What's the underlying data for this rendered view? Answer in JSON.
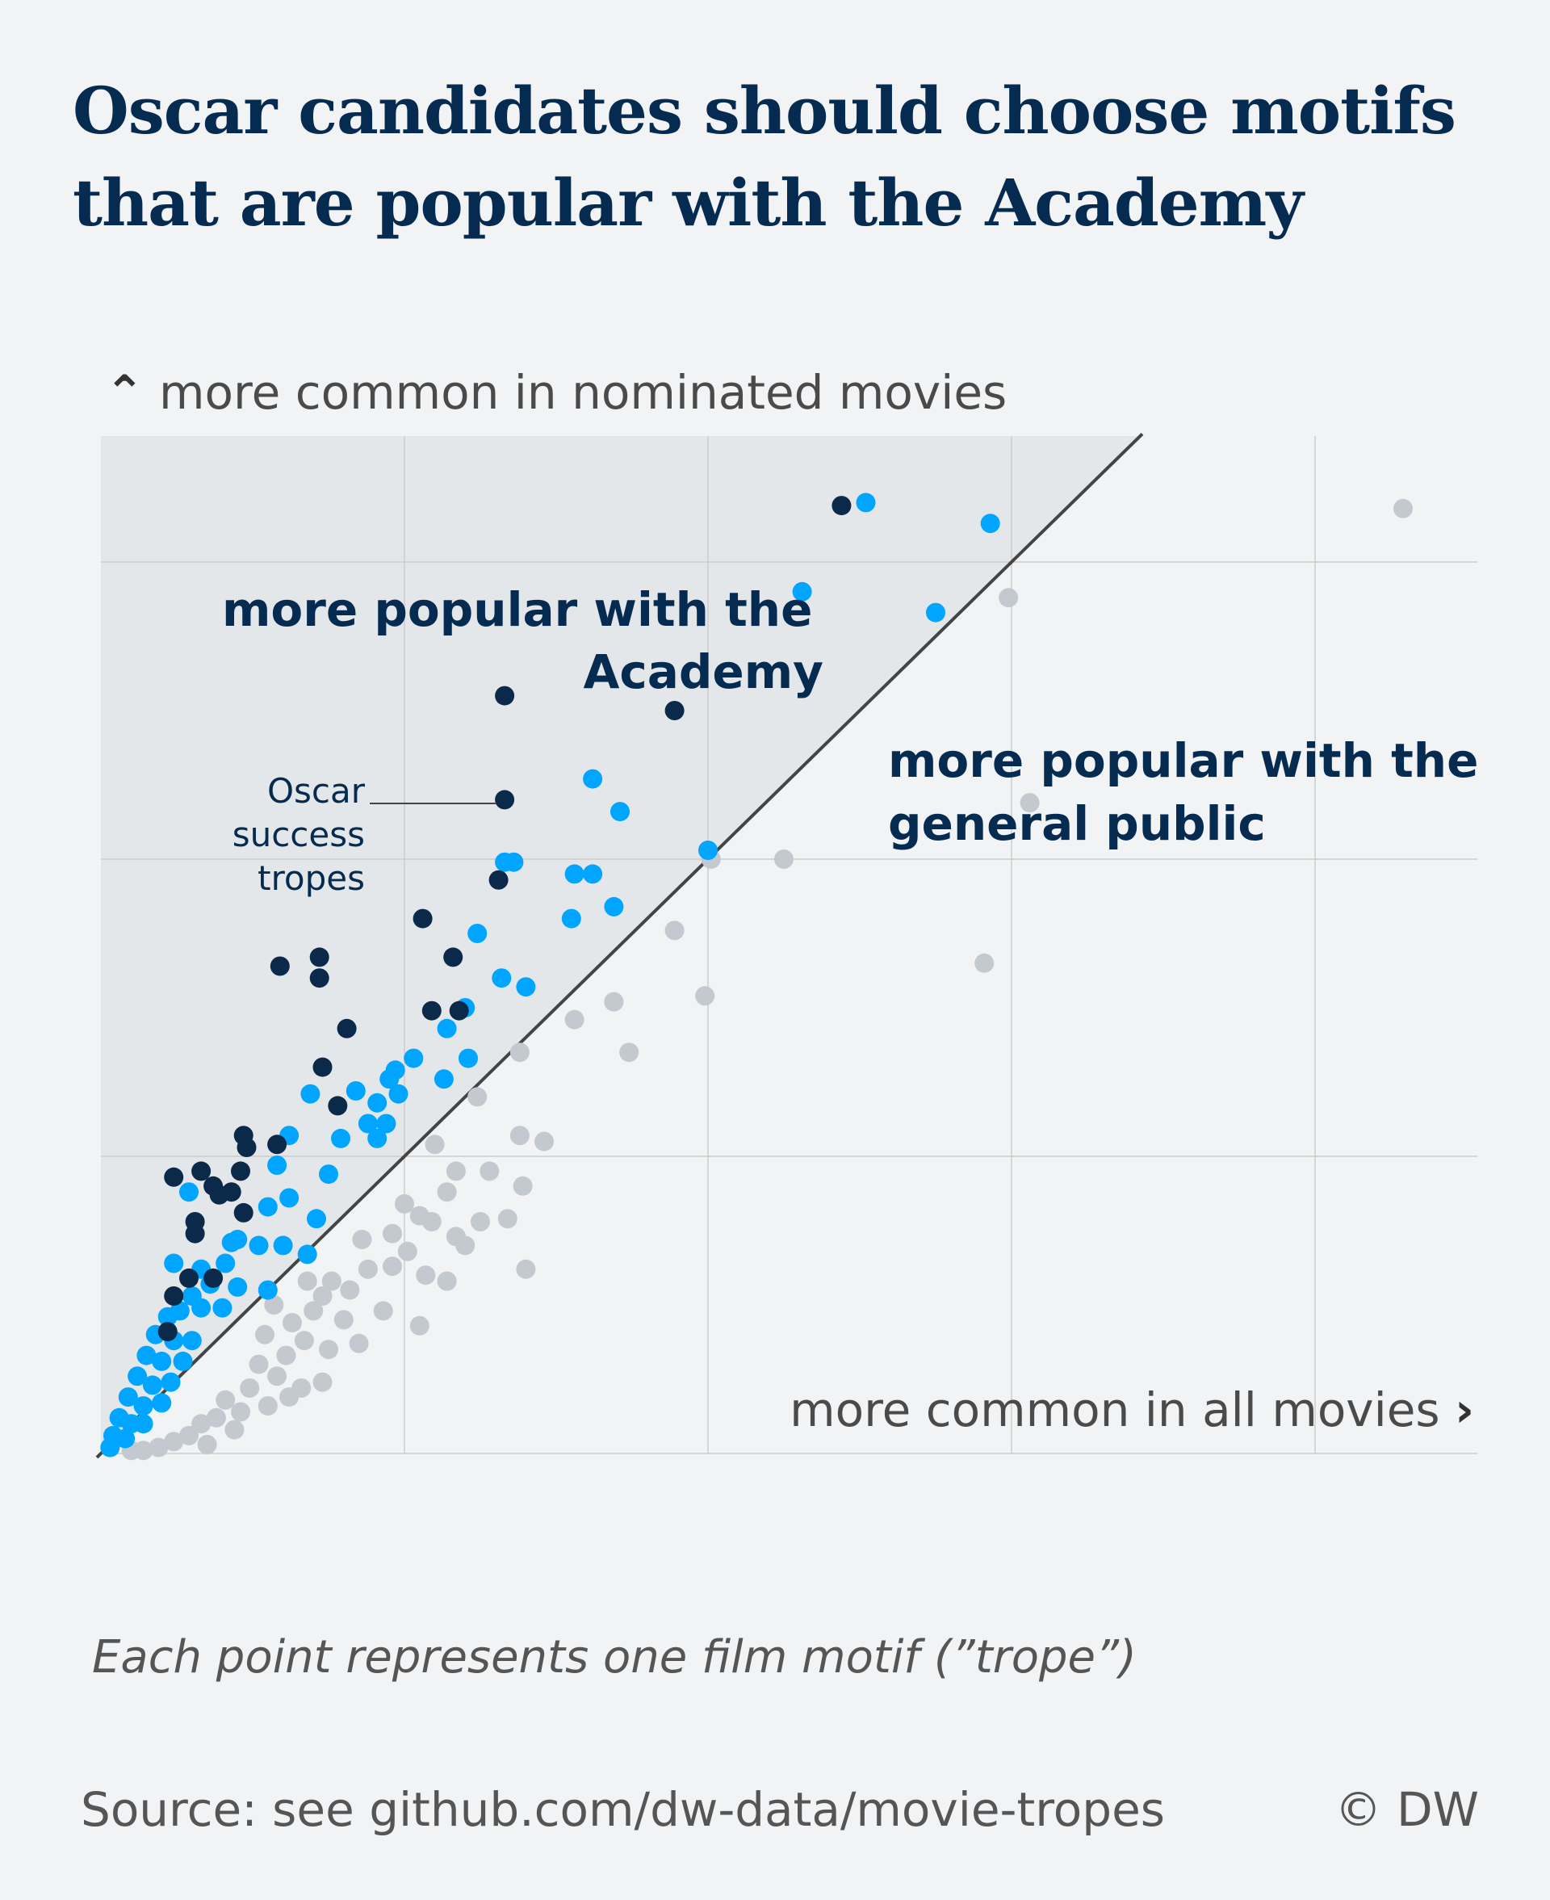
{
  "title": "Oscar candidates should choose motifs that are popular with the Academy",
  "y_axis_label": "more common in nominated movies",
  "x_axis_label": "more common in all movies",
  "annotation_academy": "more popular with the Academy",
  "annotation_public": "more popular with the general public",
  "annotation_success": "Oscar success tropes",
  "note": "Each point represents one film motif (”trope”)",
  "source": "Source: see github.com/dw-data/movie-tropes",
  "copyright": "© DW",
  "colors": {
    "background": "#f1f3f5",
    "region_above_diagonal": "#e4e7ea",
    "grid": "#cccccc",
    "diagonal": "#444444",
    "success_tropes": "#0b2a4a",
    "academy_tropes": "#00a5ff",
    "public_tropes": "#c3c9cf",
    "title": "#062b51"
  },
  "chart_data": {
    "type": "scatter",
    "title": "Oscar candidates should choose motifs that are popular with the Academy",
    "xlabel": "more common in all movies",
    "ylabel": "more common in nominated movies",
    "xlim": [
      0,
      4.5
    ],
    "ylim": [
      0,
      3.4
    ],
    "grid": true,
    "reference_line": "y = x",
    "series": [
      {
        "name": "Oscar success tropes",
        "color": "#0b2a4a",
        "points": [
          [
            2.44,
            3.19
          ],
          [
            1.89,
            2.5
          ],
          [
            1.33,
            2.55
          ],
          [
            1.33,
            2.2
          ],
          [
            1.31,
            1.93
          ],
          [
            1.06,
            1.8
          ],
          [
            1.16,
            1.67
          ],
          [
            1.18,
            1.49
          ],
          [
            1.09,
            1.49
          ],
          [
            0.72,
            1.67
          ],
          [
            0.72,
            1.6
          ],
          [
            0.81,
            1.43
          ],
          [
            0.73,
            1.3
          ],
          [
            0.78,
            1.17
          ],
          [
            0.47,
            1.07
          ],
          [
            0.58,
            1.04
          ],
          [
            0.46,
            0.95
          ],
          [
            0.24,
            0.93
          ],
          [
            0.33,
            0.95
          ],
          [
            0.39,
            0.87
          ],
          [
            0.43,
            0.88
          ],
          [
            0.47,
            0.81
          ],
          [
            0.37,
            0.9
          ],
          [
            0.31,
            0.78
          ],
          [
            0.31,
            0.74
          ],
          [
            0.37,
            0.59
          ],
          [
            0.29,
            0.59
          ],
          [
            0.24,
            0.53
          ],
          [
            0.22,
            0.41
          ],
          [
            0.59,
            1.64
          ],
          [
            0.48,
            1.03
          ]
        ]
      },
      {
        "name": "Academy tropes",
        "color": "#00a5ff",
        "points": [
          [
            2.52,
            3.2
          ],
          [
            2.93,
            3.13
          ],
          [
            2.31,
            2.9
          ],
          [
            2.75,
            2.83
          ],
          [
            1.62,
            2.27
          ],
          [
            1.71,
            2.16
          ],
          [
            2.0,
            2.03
          ],
          [
            1.33,
            1.99
          ],
          [
            1.36,
            1.99
          ],
          [
            1.56,
            1.95
          ],
          [
            1.62,
            1.95
          ],
          [
            1.69,
            1.84
          ],
          [
            1.55,
            1.8
          ],
          [
            1.24,
            1.75
          ],
          [
            1.32,
            1.6
          ],
          [
            1.4,
            1.57
          ],
          [
            1.14,
            1.43
          ],
          [
            1.2,
            1.5
          ],
          [
            1.21,
            1.33
          ],
          [
            1.03,
            1.33
          ],
          [
            0.84,
            1.22
          ],
          [
            0.97,
            1.29
          ],
          [
            1.13,
            1.26
          ],
          [
            0.98,
            1.21
          ],
          [
            0.95,
            1.26
          ],
          [
            0.91,
            1.18
          ],
          [
            0.94,
            1.11
          ],
          [
            0.91,
            1.06
          ],
          [
            0.88,
            1.11
          ],
          [
            0.69,
            1.21
          ],
          [
            0.79,
            1.06
          ],
          [
            0.62,
            1.07
          ],
          [
            0.58,
            0.97
          ],
          [
            0.75,
            0.94
          ],
          [
            0.62,
            0.86
          ],
          [
            0.71,
            0.79
          ],
          [
            0.55,
            0.83
          ],
          [
            0.45,
            0.72
          ],
          [
            0.43,
            0.71
          ],
          [
            0.29,
            0.88
          ],
          [
            0.52,
            0.7
          ],
          [
            0.6,
            0.7
          ],
          [
            0.68,
            0.67
          ],
          [
            0.41,
            0.64
          ],
          [
            0.33,
            0.62
          ],
          [
            0.24,
            0.64
          ],
          [
            0.36,
            0.57
          ],
          [
            0.45,
            0.56
          ],
          [
            0.55,
            0.55
          ],
          [
            0.3,
            0.53
          ],
          [
            0.22,
            0.46
          ],
          [
            0.26,
            0.48
          ],
          [
            0.33,
            0.49
          ],
          [
            0.4,
            0.49
          ],
          [
            0.18,
            0.4
          ],
          [
            0.24,
            0.38
          ],
          [
            0.3,
            0.38
          ],
          [
            0.15,
            0.33
          ],
          [
            0.2,
            0.31
          ],
          [
            0.27,
            0.31
          ],
          [
            0.12,
            0.26
          ],
          [
            0.17,
            0.23
          ],
          [
            0.23,
            0.24
          ],
          [
            0.09,
            0.19
          ],
          [
            0.14,
            0.16
          ],
          [
            0.2,
            0.17
          ],
          [
            0.06,
            0.12
          ],
          [
            0.1,
            0.1
          ],
          [
            0.14,
            0.1
          ],
          [
            0.04,
            0.06
          ],
          [
            0.08,
            0.05
          ],
          [
            0.03,
            0.02
          ]
        ]
      },
      {
        "name": "Public tropes",
        "color": "#c3c9cf",
        "points": [
          [
            4.29,
            3.18
          ],
          [
            2.99,
            2.88
          ],
          [
            3.06,
            2.19
          ],
          [
            2.01,
            2.0
          ],
          [
            2.25,
            2.0
          ],
          [
            1.89,
            1.76
          ],
          [
            1.99,
            1.54
          ],
          [
            2.91,
            1.65
          ],
          [
            1.69,
            1.52
          ],
          [
            1.56,
            1.46
          ],
          [
            1.74,
            1.35
          ],
          [
            1.38,
            1.35
          ],
          [
            1.24,
            1.2
          ],
          [
            1.38,
            1.07
          ],
          [
            1.46,
            1.05
          ],
          [
            1.1,
            1.04
          ],
          [
            1.17,
            0.95
          ],
          [
            1.28,
            0.95
          ],
          [
            1.39,
            0.9
          ],
          [
            1.34,
            0.79
          ],
          [
            1.14,
            0.88
          ],
          [
            1.09,
            0.78
          ],
          [
            1.25,
            0.78
          ],
          [
            1.17,
            0.73
          ],
          [
            1.0,
            0.84
          ],
          [
            1.05,
            0.8
          ],
          [
            0.96,
            0.74
          ],
          [
            1.01,
            0.68
          ],
          [
            0.96,
            0.63
          ],
          [
            1.2,
            0.7
          ],
          [
            1.4,
            0.62
          ],
          [
            1.07,
            0.6
          ],
          [
            1.14,
            0.58
          ],
          [
            0.86,
            0.72
          ],
          [
            0.88,
            0.62
          ],
          [
            0.82,
            0.55
          ],
          [
            0.76,
            0.58
          ],
          [
            0.73,
            0.53
          ],
          [
            0.68,
            0.58
          ],
          [
            0.93,
            0.48
          ],
          [
            1.05,
            0.43
          ],
          [
            0.8,
            0.45
          ],
          [
            0.7,
            0.48
          ],
          [
            0.63,
            0.44
          ],
          [
            0.57,
            0.5
          ],
          [
            0.85,
            0.37
          ],
          [
            0.75,
            0.35
          ],
          [
            0.67,
            0.38
          ],
          [
            0.61,
            0.33
          ],
          [
            0.54,
            0.4
          ],
          [
            0.73,
            0.24
          ],
          [
            0.66,
            0.22
          ],
          [
            0.58,
            0.26
          ],
          [
            0.52,
            0.3
          ],
          [
            0.49,
            0.22
          ],
          [
            0.55,
            0.16
          ],
          [
            0.62,
            0.19
          ],
          [
            0.46,
            0.14
          ],
          [
            0.41,
            0.18
          ],
          [
            0.38,
            0.12
          ],
          [
            0.44,
            0.08
          ],
          [
            0.33,
            0.1
          ],
          [
            0.29,
            0.06
          ],
          [
            0.35,
            0.03
          ],
          [
            0.24,
            0.04
          ],
          [
            0.19,
            0.02
          ],
          [
            0.14,
            0.01
          ],
          [
            0.1,
            0.01
          ]
        ]
      }
    ]
  }
}
